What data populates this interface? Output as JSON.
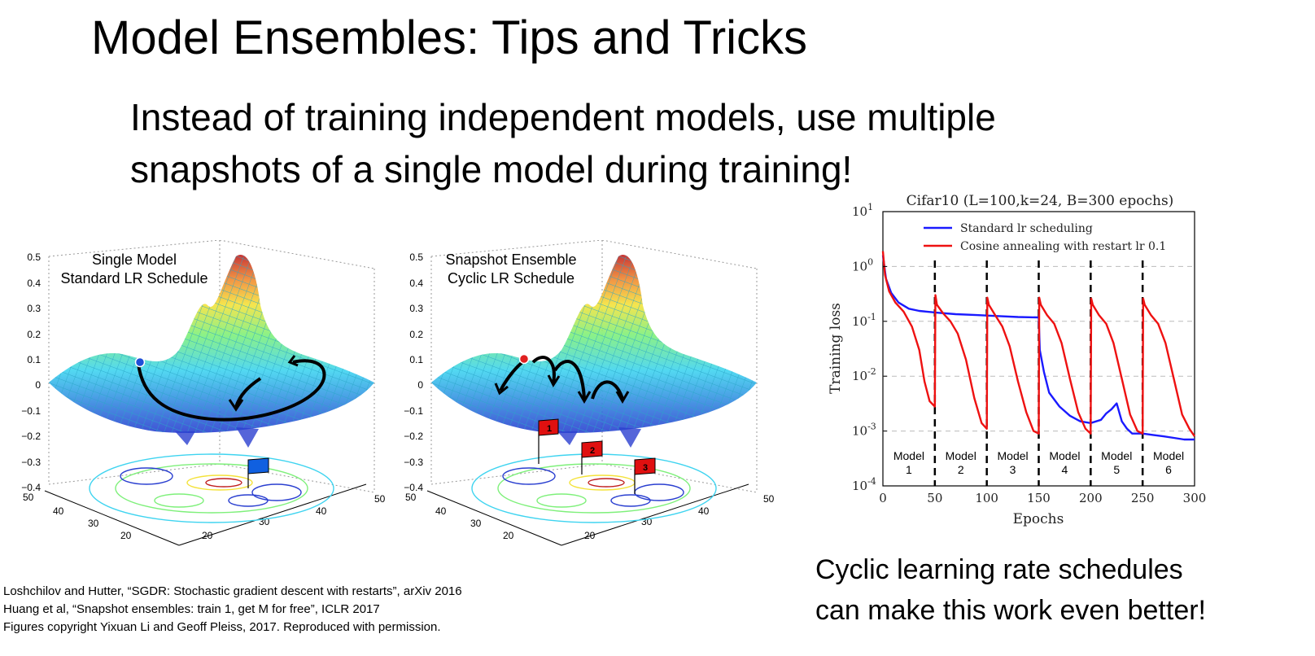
{
  "slide": {
    "title_main": "Model Ensembles",
    "title_rest": ": Tips and Tricks",
    "subtitle_line1": "Instead of training independent models, use multiple",
    "subtitle_line2": "snapshots of a single model during training!",
    "bottom_note_line1": "Cyclic learning rate schedules",
    "bottom_note_line2": "can make this work even better!",
    "references": [
      "Loshchilov and Hutter, “SGDR: Stochastic gradient descent with restarts”, arXiv 2016",
      "Huang et al, “Snapshot ensembles: train 1, get M for free”, ICLR 2017",
      "Figures copyright Yixuan Li and Geoff Pleiss, 2017. Reproduced with permission."
    ]
  },
  "surface_plots": [
    {
      "title_line1": "Single Model",
      "title_line2": "Standard LR Schedule",
      "z_ticks": [
        "0.5",
        "0.4",
        "0.3",
        "0.2",
        "0.1",
        "0",
        "−0.1",
        "−0.2",
        "−0.3",
        "−0.4"
      ],
      "x_ticks": [
        "50",
        "40",
        "30",
        "20"
      ],
      "y_ticks": [
        "20",
        "30",
        "40",
        "50"
      ],
      "marker_color": "#1f4fd8",
      "flags": []
    },
    {
      "title_line1": "Snapshot Ensemble",
      "title_line2": "Cyclic LR Schedule",
      "z_ticks": [
        "0.5",
        "0.4",
        "0.3",
        "0.2",
        "0.1",
        "0",
        "−0.1",
        "−0.2",
        "−0.3",
        "−0.4"
      ],
      "x_ticks": [
        "50",
        "40",
        "30",
        "20"
      ],
      "y_ticks": [
        "20",
        "30",
        "40",
        "50"
      ],
      "marker_color": "#e02020",
      "flags": [
        "1",
        "2",
        "3"
      ]
    }
  ],
  "chart_data": {
    "type": "line",
    "title": "Cifar10 (L=100,k=24, B=300 epochs)",
    "xlabel": "Epochs",
    "ylabel": "Training loss",
    "xlim": [
      0,
      300
    ],
    "ylim": [
      0.0001,
      10
    ],
    "yscale": "log",
    "x_ticks": [
      "0",
      "50",
      "100",
      "150",
      "200",
      "250",
      "300"
    ],
    "y_ticks": [
      {
        "base": "10",
        "exp": "1"
      },
      {
        "base": "10",
        "exp": "0"
      },
      {
        "base": "10",
        "exp": "-1"
      },
      {
        "base": "10",
        "exp": "-2"
      },
      {
        "base": "10",
        "exp": "-3"
      },
      {
        "base": "10",
        "exp": "-4"
      }
    ],
    "legend_position": "top",
    "grid": true,
    "restart_epochs": [
      50,
      100,
      150,
      200,
      250
    ],
    "model_labels": [
      {
        "name": "Model",
        "num": "1",
        "x": 25
      },
      {
        "name": "Model",
        "num": "2",
        "x": 75
      },
      {
        "name": "Model",
        "num": "3",
        "x": 125
      },
      {
        "name": "Model",
        "num": "4",
        "x": 175
      },
      {
        "name": "Model",
        "num": "5",
        "x": 225
      },
      {
        "name": "Model",
        "num": "6",
        "x": 275
      }
    ],
    "series": [
      {
        "name": "Standard lr scheduling",
        "color": "#1a1aff",
        "x": [
          0,
          3,
          8,
          15,
          25,
          35,
          50,
          70,
          90,
          110,
          130,
          150,
          151,
          155,
          160,
          170,
          180,
          190,
          200,
          210,
          215,
          220,
          225,
          230,
          235,
          240,
          250,
          260,
          270,
          280,
          290,
          300
        ],
        "y": [
          1.6,
          0.6,
          0.33,
          0.22,
          0.17,
          0.155,
          0.145,
          0.135,
          0.13,
          0.125,
          0.12,
          0.118,
          0.03,
          0.012,
          0.005,
          0.0028,
          0.0019,
          0.0015,
          0.0014,
          0.0016,
          0.0021,
          0.0025,
          0.0032,
          0.0015,
          0.0011,
          0.0009,
          0.0009,
          0.00085,
          0.0008,
          0.00075,
          0.0007,
          0.0007
        ]
      },
      {
        "name": "Cosine annealing with restart lr 0.1",
        "color": "#ee1111",
        "x": [
          0,
          2,
          6,
          12,
          20,
          28,
          35,
          40,
          45,
          50,
          50.5,
          52,
          58,
          65,
          72,
          80,
          88,
          95,
          100,
          100.5,
          102,
          108,
          115,
          122,
          130,
          138,
          145,
          150,
          150.5,
          152,
          158,
          165,
          172,
          180,
          188,
          195,
          200,
          200.5,
          202,
          208,
          215,
          222,
          230,
          238,
          245,
          250,
          250.5,
          252,
          258,
          265,
          272,
          280,
          288,
          295,
          300
        ],
        "y": [
          1.9,
          0.7,
          0.35,
          0.22,
          0.15,
          0.08,
          0.03,
          0.008,
          0.0035,
          0.0028,
          0.3,
          0.2,
          0.14,
          0.1,
          0.06,
          0.02,
          0.004,
          0.0014,
          0.0011,
          0.27,
          0.2,
          0.13,
          0.08,
          0.035,
          0.008,
          0.0022,
          0.001,
          0.0009,
          0.27,
          0.2,
          0.13,
          0.09,
          0.04,
          0.009,
          0.0022,
          0.0011,
          0.0009,
          0.26,
          0.2,
          0.13,
          0.09,
          0.04,
          0.009,
          0.002,
          0.001,
          0.0009,
          0.26,
          0.2,
          0.13,
          0.09,
          0.04,
          0.009,
          0.002,
          0.0011,
          0.0008
        ]
      }
    ]
  }
}
